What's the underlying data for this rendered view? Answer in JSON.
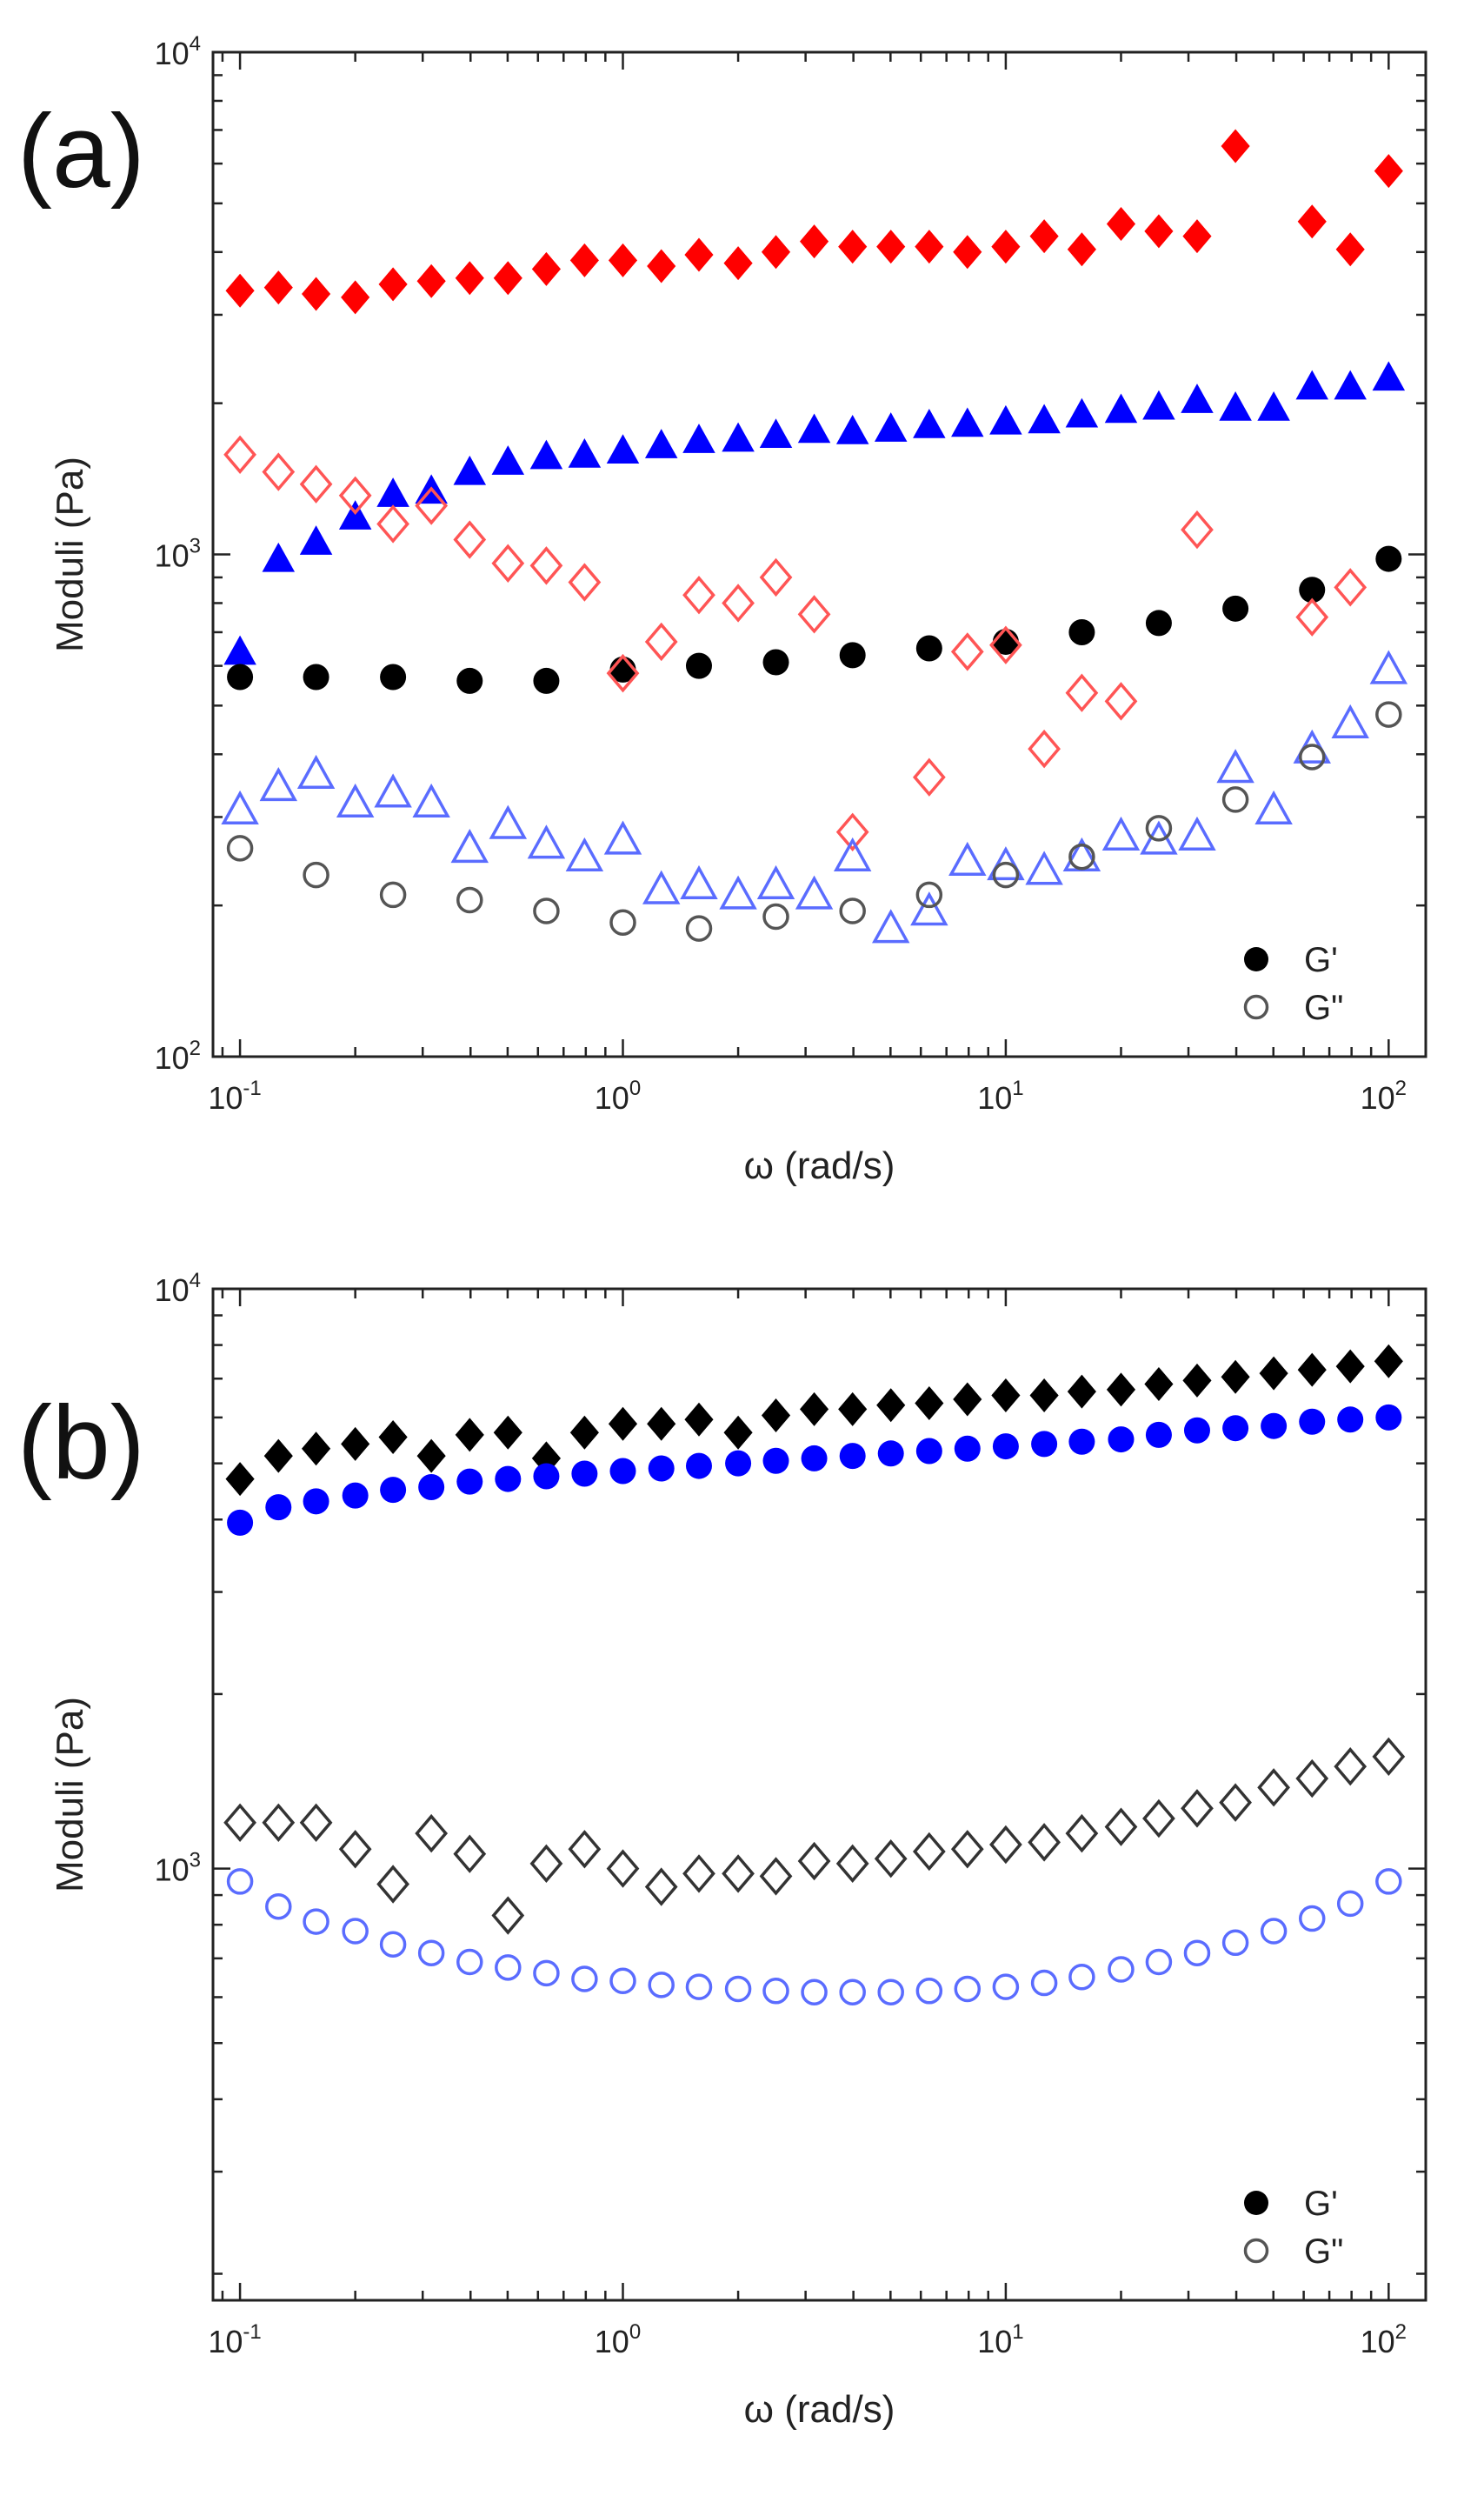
{
  "chart_data": [
    {
      "type": "scatter",
      "panel": "(a)",
      "xlabel": "ω (rad/s)",
      "ylabel": "Moduli (Pa)",
      "xscale": "log",
      "yscale": "log",
      "xlim": [
        0.085,
        125
      ],
      "ylim": [
        100,
        10000
      ],
      "xticks": [
        {
          "base": "10",
          "exp": "-1",
          "value": 0.1
        },
        {
          "base": "10",
          "exp": "0",
          "value": 1
        },
        {
          "base": "10",
          "exp": "1",
          "value": 10
        },
        {
          "base": "10",
          "exp": "2",
          "value": 100
        }
      ],
      "yticks": [
        {
          "base": "10",
          "exp": "2",
          "value": 100
        },
        {
          "base": "10",
          "exp": "3",
          "value": 1000
        },
        {
          "base": "10",
          "exp": "4",
          "value": 10000
        }
      ],
      "legend": {
        "position": "bottom-right",
        "entries": [
          {
            "label": "G'",
            "marker": "filled-circle"
          },
          {
            "label": "G\"",
            "marker": "open-circle"
          }
        ]
      },
      "series": [
        {
          "name": "G' red",
          "marker": "diamond",
          "filled": true,
          "color": "#ff0000",
          "x": [
            0.1,
            0.126,
            0.158,
            0.2,
            0.251,
            0.316,
            0.398,
            0.501,
            0.631,
            0.794,
            1,
            1.26,
            1.58,
            2,
            2.51,
            3.16,
            3.98,
            5.01,
            6.31,
            7.94,
            10,
            12.6,
            15.8,
            20,
            25.1,
            31.6,
            39.8,
            63.1,
            79.4,
            100
          ],
          "y": [
            3350,
            3400,
            3300,
            3250,
            3450,
            3500,
            3550,
            3550,
            3700,
            3850,
            3850,
            3750,
            3950,
            3800,
            4000,
            4200,
            4100,
            4100,
            4100,
            4000,
            4100,
            4300,
            4050,
            4550,
            4400,
            4300,
            6500,
            4600,
            4050,
            5800
          ]
        },
        {
          "name": "G' blue",
          "marker": "triangle",
          "filled": true,
          "color": "#0000ff",
          "x": [
            0.1,
            0.126,
            0.158,
            0.2,
            0.251,
            0.316,
            0.398,
            0.501,
            0.631,
            0.794,
            1,
            1.26,
            1.58,
            2,
            2.51,
            3.16,
            3.98,
            5.01,
            6.31,
            7.94,
            10,
            12.6,
            15.8,
            20,
            25.1,
            31.6,
            39.8,
            50.1,
            63.1,
            79.4,
            100
          ],
          "y": [
            640,
            980,
            1060,
            1190,
            1320,
            1340,
            1460,
            1530,
            1570,
            1580,
            1610,
            1650,
            1690,
            1700,
            1730,
            1770,
            1760,
            1780,
            1810,
            1820,
            1840,
            1850,
            1900,
            1940,
            1970,
            2030,
            1960,
            1960,
            2160,
            2160,
            2250
          ]
        },
        {
          "name": "G' black",
          "marker": "circle",
          "filled": true,
          "color": "#000000",
          "x": [
            0.1,
            0.158,
            0.251,
            0.398,
            0.631,
            1,
            1.58,
            2.51,
            3.98,
            6.31,
            10,
            15.8,
            25.1,
            39.8,
            63.1,
            100
          ],
          "y": [
            570,
            570,
            570,
            560,
            560,
            590,
            600,
            610,
            630,
            650,
            670,
            700,
            730,
            780,
            850,
            980
          ]
        },
        {
          "name": "G\" red",
          "marker": "diamond",
          "filled": false,
          "color": "#ff5555",
          "x": [
            0.1,
            0.126,
            0.158,
            0.2,
            0.251,
            0.316,
            0.398,
            0.501,
            0.631,
            0.794,
            1,
            1.26,
            1.58,
            2,
            2.51,
            3.16,
            3.98,
            6.31,
            7.94,
            10,
            12.6,
            15.8,
            20,
            31.6,
            63.1,
            79.4
          ],
          "y": [
            1580,
            1460,
            1380,
            1310,
            1150,
            1250,
            1070,
            960,
            950,
            880,
            580,
            670,
            830,
            800,
            900,
            760,
            280,
            360,
            640,
            660,
            410,
            530,
            510,
            1120,
            750,
            860
          ]
        },
        {
          "name": "G\" blue",
          "marker": "triangle",
          "filled": false,
          "color": "#5a6cff",
          "x": [
            0.1,
            0.126,
            0.158,
            0.2,
            0.251,
            0.316,
            0.398,
            0.501,
            0.631,
            0.794,
            1,
            1.26,
            1.58,
            2,
            2.51,
            3.16,
            3.98,
            5.01,
            6.31,
            7.94,
            10,
            12.6,
            15.8,
            20,
            25.1,
            31.6,
            39.8,
            50.1,
            63.1,
            79.4,
            100
          ],
          "y": [
            310,
            345,
            365,
            320,
            335,
            320,
            260,
            290,
            265,
            250,
            270,
            215,
            220,
            210,
            220,
            210,
            250,
            180,
            195,
            245,
            240,
            235,
            250,
            275,
            270,
            275,
            375,
            310,
            410,
            460,
            590
          ]
        },
        {
          "name": "G\" black",
          "marker": "circle",
          "filled": false,
          "color": "#555555",
          "x": [
            0.1,
            0.158,
            0.251,
            0.398,
            0.631,
            1,
            1.58,
            2.51,
            3.98,
            6.31,
            10,
            15.8,
            25.1,
            39.8,
            63.1,
            100
          ],
          "y": [
            260,
            230,
            210,
            205,
            195,
            185,
            180,
            190,
            195,
            210,
            230,
            250,
            285,
            325,
            395,
            480
          ]
        }
      ]
    },
    {
      "type": "scatter",
      "panel": "(b)",
      "xlabel": "ω (rad/s)",
      "ylabel": "Moduli (Pa)",
      "xscale": "log",
      "yscale": "log",
      "xlim": [
        0.085,
        125
      ],
      "ylim": [
        180,
        10000
      ],
      "xticks": [
        {
          "base": "10",
          "exp": "-1",
          "value": 0.1
        },
        {
          "base": "10",
          "exp": "0",
          "value": 1
        },
        {
          "base": "10",
          "exp": "1",
          "value": 10
        },
        {
          "base": "10",
          "exp": "2",
          "value": 100
        }
      ],
      "yticks": [
        {
          "base": "10",
          "exp": "3",
          "value": 1000
        },
        {
          "base": "10",
          "exp": "4",
          "value": 10000
        }
      ],
      "legend": {
        "position": "bottom-right",
        "entries": [
          {
            "label": "G'",
            "marker": "filled-circle"
          },
          {
            "label": "G\"",
            "marker": "open-circle"
          }
        ]
      },
      "series": [
        {
          "name": "G' black",
          "marker": "diamond",
          "filled": true,
          "color": "#000000",
          "x": [
            0.1,
            0.126,
            0.158,
            0.2,
            0.251,
            0.316,
            0.398,
            0.501,
            0.631,
            0.794,
            1,
            1.26,
            1.58,
            2,
            2.51,
            3.16,
            3.98,
            5.01,
            6.31,
            7.94,
            10,
            12.6,
            15.8,
            20,
            25.1,
            31.6,
            39.8,
            50.1,
            63.1,
            79.4,
            100
          ],
          "y": [
            4700,
            5150,
            5300,
            5400,
            5550,
            5150,
            5600,
            5650,
            5100,
            5650,
            5850,
            5850,
            5950,
            5650,
            6050,
            6200,
            6200,
            6300,
            6350,
            6450,
            6550,
            6550,
            6650,
            6700,
            6850,
            6950,
            7050,
            7150,
            7250,
            7350,
            7500
          ]
        },
        {
          "name": "G' blue",
          "marker": "circle",
          "filled": true,
          "color": "#0000ff",
          "x": [
            0.1,
            0.126,
            0.158,
            0.2,
            0.251,
            0.316,
            0.398,
            0.501,
            0.631,
            0.794,
            1,
            1.26,
            1.58,
            2,
            2.51,
            3.16,
            3.98,
            5.01,
            6.31,
            7.94,
            10,
            12.6,
            15.8,
            20,
            25.1,
            31.6,
            39.8,
            50.1,
            63.1,
            79.4,
            100
          ],
          "y": [
            3950,
            4200,
            4300,
            4400,
            4500,
            4550,
            4650,
            4700,
            4750,
            4800,
            4850,
            4900,
            4950,
            5000,
            5050,
            5100,
            5150,
            5200,
            5250,
            5300,
            5350,
            5400,
            5450,
            5500,
            5600,
            5700,
            5750,
            5800,
            5900,
            5950,
            6000
          ]
        },
        {
          "name": "G\" black",
          "marker": "diamond",
          "filled": false,
          "color": "#333333",
          "x": [
            0.1,
            0.126,
            0.158,
            0.2,
            0.251,
            0.316,
            0.398,
            0.501,
            0.631,
            0.794,
            1,
            1.26,
            1.58,
            2,
            2.51,
            3.16,
            3.98,
            5.01,
            6.31,
            7.94,
            10,
            12.6,
            15.8,
            20,
            25.1,
            31.6,
            39.8,
            50.1,
            63.1,
            79.4,
            100
          ],
          "y": [
            1200,
            1200,
            1200,
            1080,
            940,
            1150,
            1060,
            830,
            1020,
            1080,
            1000,
            930,
            980,
            980,
            970,
            1030,
            1020,
            1040,
            1070,
            1080,
            1100,
            1110,
            1150,
            1180,
            1220,
            1270,
            1300,
            1380,
            1430,
            1500,
            1560
          ]
        },
        {
          "name": "G\" blue",
          "marker": "circle",
          "filled": false,
          "color": "#5a6cff",
          "x": [
            0.1,
            0.126,
            0.158,
            0.2,
            0.251,
            0.316,
            0.398,
            0.501,
            0.631,
            0.794,
            1,
            1.26,
            1.58,
            2,
            2.51,
            3.16,
            3.98,
            5.01,
            6.31,
            7.94,
            10,
            12.6,
            15.8,
            20,
            25.1,
            31.6,
            39.8,
            50.1,
            63.1,
            79.4,
            100
          ],
          "y": [
            950,
            860,
            810,
            780,
            740,
            715,
            690,
            675,
            660,
            645,
            640,
            630,
            625,
            620,
            615,
            612,
            612,
            612,
            615,
            620,
            625,
            635,
            650,
            670,
            690,
            715,
            745,
            780,
            820,
            870,
            950
          ]
        }
      ]
    }
  ]
}
